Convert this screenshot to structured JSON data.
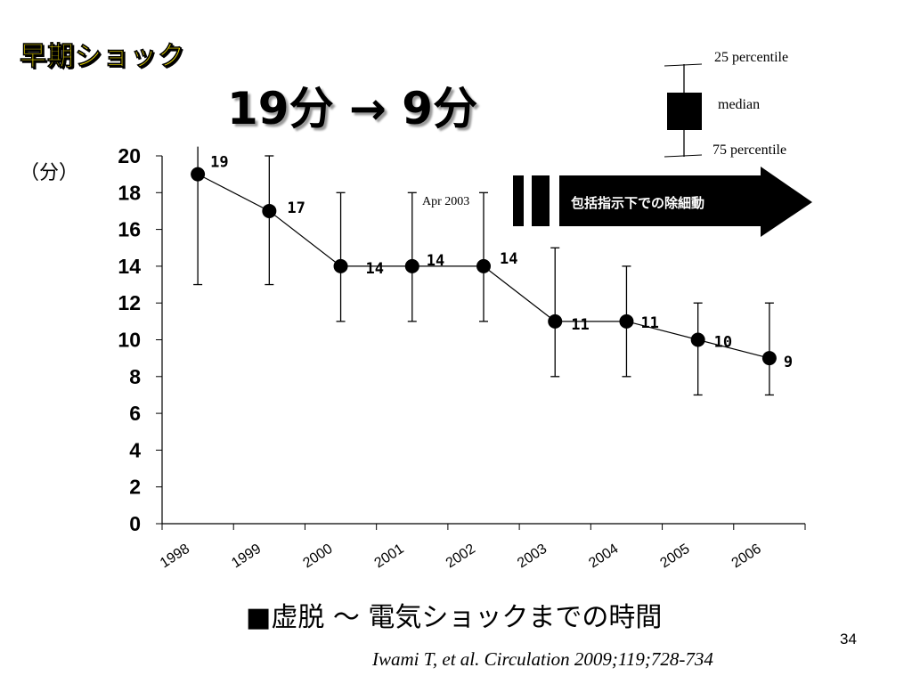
{
  "slide": {
    "title": "早期ショック",
    "headline": "19分 → 9分",
    "unit_label": "（分）",
    "caption": "■虚脱 ～ 電気ショックまでの時間",
    "citation": "Iwami T, et al. Circulation 2009;119;728-734",
    "page_number": "34"
  },
  "legend": {
    "upper": "25 percentile",
    "middle": "median",
    "lower": "75 percentile"
  },
  "annotations": {
    "date_note": "Apr 2003",
    "arrow_text": "包括指示下での除細動"
  },
  "chart_data": {
    "type": "line",
    "categories": [
      "1998",
      "1999",
      "2000",
      "2001",
      "2002",
      "2003",
      "2004",
      "2005",
      "2006"
    ],
    "median": [
      19,
      17,
      14,
      14,
      14,
      11,
      11,
      10,
      9
    ],
    "p25": [
      20.5,
      20,
      18,
      18,
      18,
      15,
      14,
      12,
      12
    ],
    "p75": [
      13,
      13,
      11,
      11,
      11,
      8,
      8,
      7,
      7
    ],
    "value_labels": [
      "19",
      "17",
      "14",
      "14",
      "14",
      "11",
      "11",
      "10",
      "9"
    ],
    "y_ticks": [
      "0",
      "2",
      "4",
      "6",
      "8",
      "10",
      "12",
      "14",
      "16",
      "18",
      "20"
    ],
    "ylim": [
      0,
      20
    ],
    "legend_position": "top-right",
    "grid": false
  }
}
